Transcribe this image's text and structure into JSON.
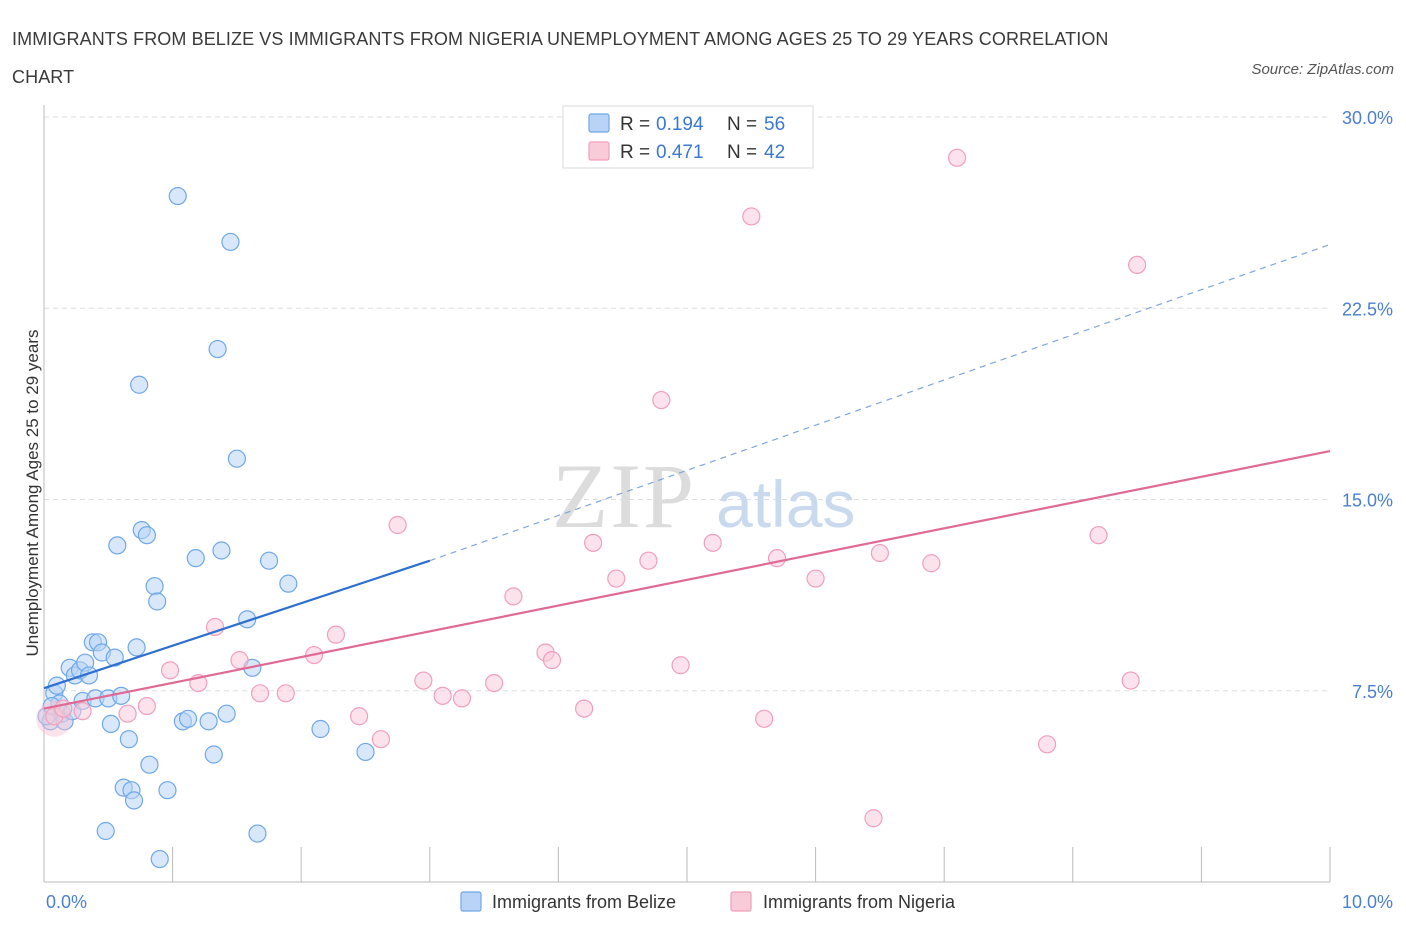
{
  "title": "IMMIGRANTS FROM BELIZE VS IMMIGRANTS FROM NIGERIA UNEMPLOYMENT AMONG AGES 25 TO 29 YEARS CORRELATION CHART",
  "source": "Source: ZipAtlas.com",
  "watermark": {
    "zip": "ZIP",
    "atlas": "atlas"
  },
  "legend": {
    "r_label": "R =",
    "n_label": "N =",
    "rows": [
      {
        "r": "0.194",
        "n": "56"
      },
      {
        "r": "0.471",
        "n": "42"
      }
    ]
  },
  "chart_data": {
    "type": "scatter",
    "title": "IMMIGRANTS FROM BELIZE VS IMMIGRANTS FROM NIGERIA UNEMPLOYMENT AMONG AGES 25 TO 29 YEARS CORRELATION CHART",
    "xlabel": "",
    "ylabel": "Unemployment Among Ages 25 to 29 years",
    "xlim": [
      0,
      10
    ],
    "ylim": [
      0,
      30
    ],
    "x_tick_labels": [
      "0.0%",
      "10.0%"
    ],
    "y_ticks": [
      7.5,
      15.0,
      22.5,
      30.0
    ],
    "y_tick_labels": [
      "7.5%",
      "15.0%",
      "22.5%",
      "30.0%"
    ],
    "grid": true,
    "legend_position": "top-center",
    "colors": {
      "belize": "#6fa8e8",
      "nigeria": "#f19fbb",
      "belize_line": "#2f6fd0",
      "nigeria_line": "#e06a93"
    },
    "series": [
      {
        "name": "Immigrants from Belize",
        "r": 0.194,
        "n": 56,
        "trend": {
          "x": [
            0,
            3.0
          ],
          "y": [
            7.6,
            12.6
          ],
          "dashed_to": [
            10.0,
            25.0
          ]
        },
        "points": [
          [
            0.05,
            6.3
          ],
          [
            0.08,
            7.4
          ],
          [
            0.1,
            7.7
          ],
          [
            0.12,
            7.0
          ],
          [
            0.14,
            6.6
          ],
          [
            0.16,
            6.3
          ],
          [
            0.2,
            8.4
          ],
          [
            0.22,
            6.7
          ],
          [
            0.24,
            8.1
          ],
          [
            0.28,
            8.3
          ],
          [
            0.3,
            7.1
          ],
          [
            0.32,
            8.6
          ],
          [
            0.35,
            8.1
          ],
          [
            0.38,
            9.4
          ],
          [
            0.4,
            7.2
          ],
          [
            0.42,
            9.4
          ],
          [
            0.45,
            9.0
          ],
          [
            0.48,
            2.0
          ],
          [
            0.5,
            7.2
          ],
          [
            0.52,
            6.2
          ],
          [
            0.55,
            8.8
          ],
          [
            0.57,
            13.2
          ],
          [
            0.6,
            7.3
          ],
          [
            0.62,
            3.7
          ],
          [
            0.66,
            5.6
          ],
          [
            0.68,
            3.6
          ],
          [
            0.7,
            3.2
          ],
          [
            0.72,
            9.2
          ],
          [
            0.74,
            19.5
          ],
          [
            0.76,
            13.8
          ],
          [
            0.8,
            13.6
          ],
          [
            0.82,
            4.6
          ],
          [
            0.86,
            11.6
          ],
          [
            0.88,
            11.0
          ],
          [
            0.9,
            0.9
          ],
          [
            0.96,
            3.6
          ],
          [
            1.04,
            26.9
          ],
          [
            1.08,
            6.3
          ],
          [
            1.12,
            6.4
          ],
          [
            1.18,
            12.7
          ],
          [
            1.28,
            6.3
          ],
          [
            1.32,
            5.0
          ],
          [
            1.35,
            20.9
          ],
          [
            1.38,
            13.0
          ],
          [
            1.42,
            6.6
          ],
          [
            1.45,
            25.1
          ],
          [
            1.5,
            16.6
          ],
          [
            1.58,
            10.3
          ],
          [
            1.62,
            8.4
          ],
          [
            1.66,
            1.9
          ],
          [
            1.75,
            12.6
          ],
          [
            1.9,
            11.7
          ],
          [
            2.15,
            6.0
          ],
          [
            2.5,
            5.1
          ],
          [
            0.02,
            6.5
          ],
          [
            0.06,
            6.9
          ]
        ]
      },
      {
        "name": "Immigrants from Nigeria",
        "r": 0.471,
        "n": 42,
        "trend": {
          "x": [
            0,
            10.0
          ],
          "y": [
            6.8,
            16.9
          ]
        },
        "points": [
          [
            0.08,
            6.5
          ],
          [
            0.15,
            6.8
          ],
          [
            0.3,
            6.7
          ],
          [
            0.65,
            6.6
          ],
          [
            0.8,
            6.9
          ],
          [
            0.98,
            8.3
          ],
          [
            1.2,
            7.8
          ],
          [
            1.33,
            10.0
          ],
          [
            1.52,
            8.7
          ],
          [
            1.68,
            7.4
          ],
          [
            1.88,
            7.4
          ],
          [
            2.1,
            8.9
          ],
          [
            2.27,
            9.7
          ],
          [
            2.45,
            6.5
          ],
          [
            2.62,
            5.6
          ],
          [
            2.75,
            14.0
          ],
          [
            2.95,
            7.9
          ],
          [
            3.1,
            7.3
          ],
          [
            3.25,
            7.2
          ],
          [
            3.5,
            7.8
          ],
          [
            3.65,
            11.2
          ],
          [
            3.9,
            9.0
          ],
          [
            3.95,
            8.7
          ],
          [
            4.2,
            6.8
          ],
          [
            4.27,
            13.3
          ],
          [
            4.45,
            11.9
          ],
          [
            4.7,
            12.6
          ],
          [
            4.8,
            18.9
          ],
          [
            4.95,
            8.5
          ],
          [
            5.2,
            13.3
          ],
          [
            5.5,
            26.1
          ],
          [
            5.6,
            6.4
          ],
          [
            5.7,
            12.7
          ],
          [
            6.0,
            11.9
          ],
          [
            6.45,
            2.5
          ],
          [
            6.5,
            12.9
          ],
          [
            6.9,
            12.5
          ],
          [
            7.1,
            28.4
          ],
          [
            7.8,
            5.4
          ],
          [
            8.2,
            13.6
          ],
          [
            8.45,
            7.9
          ],
          [
            8.5,
            24.2
          ]
        ]
      }
    ]
  }
}
